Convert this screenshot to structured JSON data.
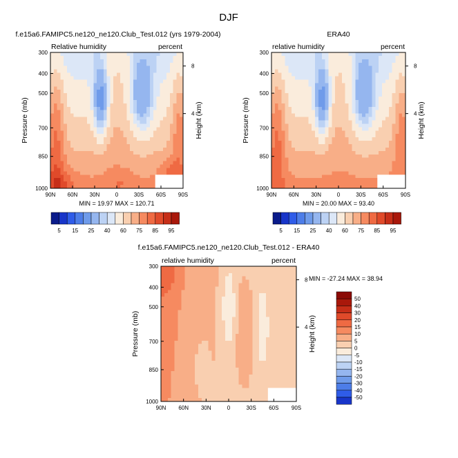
{
  "page_title": "DJF",
  "colors": {
    "palette": [
      "#0a1b8a",
      "#1835c9",
      "#2f5ce8",
      "#4d7de8",
      "#6f9bea",
      "#95b6ef",
      "#bcd2f4",
      "#dce7f7",
      "#faecdc",
      "#f9cfb0",
      "#f8ae87",
      "#f68a60",
      "#ef6a43",
      "#e04a2a",
      "#c62e18",
      "#a9180b",
      "#8b0a05"
    ]
  },
  "chart_data": [
    {
      "type": "heatmap",
      "title": "f.e15a6.FAMIPC5.ne120_ne120.Club_Test.012 (yrs 1979-2004)",
      "left_label": "Relative humidity",
      "right_label": "percent",
      "ylabel": "Pressure (mb)",
      "ylabel_right": "Height (km)",
      "x_ticks": [
        "90N",
        "60N",
        "30N",
        "0",
        "30S",
        "60S",
        "90S"
      ],
      "y_ticks": [
        "300",
        "400",
        "500",
        "700",
        "850",
        "1000"
      ],
      "y_right_ticks": [
        "8",
        "4"
      ],
      "stats_text": "MIN = 19.97  MAX = 120.71",
      "colorbar_labels": [
        "5",
        "15",
        "25",
        "40",
        "60",
        "75",
        "85",
        "95"
      ],
      "grid": false
    },
    {
      "type": "heatmap",
      "title": "ERA40",
      "left_label": "relative humidity",
      "right_label": "percent",
      "ylabel": "Pressure (mb)",
      "ylabel_right": "Height (km)",
      "x_ticks": [
        "90N",
        "60N",
        "30N",
        "0",
        "30S",
        "60S",
        "90S"
      ],
      "y_ticks": [
        "300",
        "400",
        "500",
        "700",
        "850",
        "1000"
      ],
      "y_right_ticks": [
        "8",
        "4"
      ],
      "stats_text": "MIN = 20.00  MAX = 93.40",
      "colorbar_labels": [
        "5",
        "15",
        "25",
        "40",
        "60",
        "75",
        "85",
        "95"
      ],
      "grid": false
    },
    {
      "type": "heatmap",
      "title": "f.e15a6.FAMIPC5.ne120_ne120.Club_Test.012 - ERA40",
      "left_label": "relative humidity",
      "right_label": "percent",
      "ylabel": "Pressure (mb)",
      "ylabel_right": "Height (km)",
      "x_ticks": [
        "90N",
        "60N",
        "30N",
        "0",
        "30S",
        "60S",
        "90S"
      ],
      "y_ticks": [
        "300",
        "400",
        "500",
        "700",
        "850",
        "1000"
      ],
      "y_right_ticks": [
        "8",
        "4"
      ],
      "stats_text": "MIN = -27.24  MAX =  38.94",
      "colorbar_labels": [
        "50",
        "40",
        "30",
        "20",
        "15",
        "10",
        "5",
        "0",
        "-5",
        "-10",
        "-15",
        "-20",
        "-30",
        "-40",
        "-50"
      ],
      "grid": false
    }
  ]
}
